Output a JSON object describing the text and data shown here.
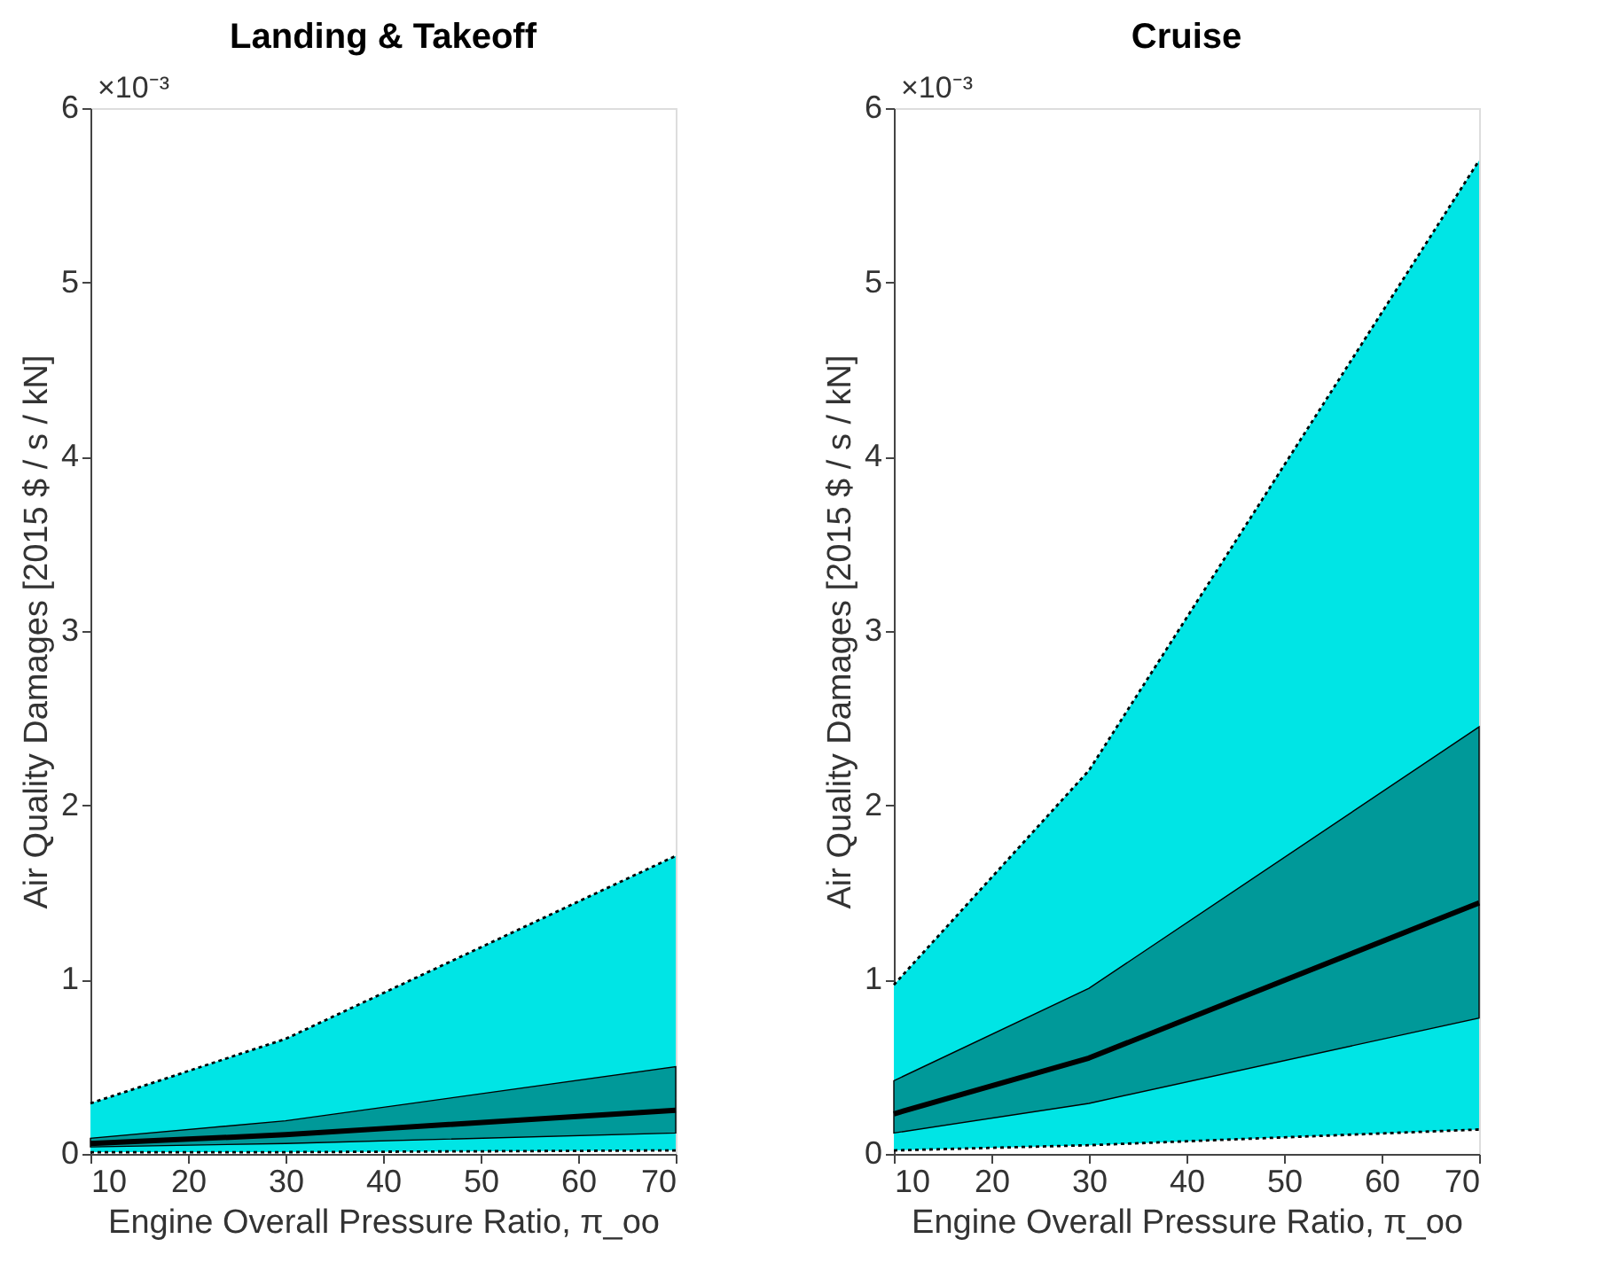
{
  "chart_data": [
    {
      "type": "line",
      "title": "Landing & Takeoff",
      "xlabel": "Engine Overall Pressure Ratio, π_oo",
      "ylabel": "Air Quality Damages [2015 $ / s / kN]",
      "annotations": [
        "×10⁻³"
      ],
      "x": [
        10,
        30,
        70
      ],
      "xlim": [
        10,
        70
      ],
      "xticks": [
        10,
        20,
        30,
        40,
        50,
        60,
        70
      ],
      "ylim": [
        0,
        6
      ],
      "yticks": [
        0,
        1,
        2,
        3,
        4,
        5,
        6
      ],
      "grid": false,
      "colors": [
        "#00e5e5",
        "#009999"
      ],
      "series": [
        {
          "color": "#000000",
          "line_style": "dotted",
          "values": [
            0.29,
            0.66,
            1.71
          ],
          "lower": [
            0.01,
            0.01,
            0.02
          ],
          "upper": [
            0.29,
            0.66,
            1.71
          ]
        },
        {
          "color": "#000000",
          "line_style": "dotted",
          "values": [
            0.01,
            0.01,
            0.02
          ]
        },
        {
          "color": "#000000",
          "line_style": "solid",
          "values": [
            0.06,
            0.11,
            0.25
          ],
          "lower": [
            0.04,
            0.06,
            0.12
          ],
          "upper": [
            0.09,
            0.19,
            0.5
          ]
        }
      ]
    },
    {
      "type": "line",
      "title": "Cruise",
      "xlabel": "Engine Overall Pressure Ratio, π_oo",
      "ylabel": "Air Quality Damages [2015 $ / s / kN]",
      "annotations": [
        "×10⁻³"
      ],
      "x": [
        10,
        30,
        70
      ],
      "xlim": [
        10,
        70
      ],
      "xticks": [
        10,
        20,
        30,
        40,
        50,
        60,
        70
      ],
      "ylim": [
        0,
        6
      ],
      "yticks": [
        0,
        1,
        2,
        3,
        4,
        5,
        6
      ],
      "grid": false,
      "colors": [
        "#00e5e5",
        "#009999"
      ],
      "series": [
        {
          "color": "#000000",
          "line_style": "dotted",
          "values": [
            0.97,
            2.2,
            5.7
          ],
          "lower": [
            0.02,
            0.05,
            0.14
          ],
          "upper": [
            0.97,
            2.2,
            5.7
          ]
        },
        {
          "color": "#000000",
          "line_style": "dotted",
          "values": [
            0.02,
            0.05,
            0.14
          ]
        },
        {
          "color": "#000000",
          "line_style": "solid",
          "values": [
            0.23,
            0.55,
            1.44
          ],
          "lower": [
            0.12,
            0.29,
            0.78
          ],
          "upper": [
            0.42,
            0.95,
            2.45
          ]
        }
      ]
    }
  ]
}
